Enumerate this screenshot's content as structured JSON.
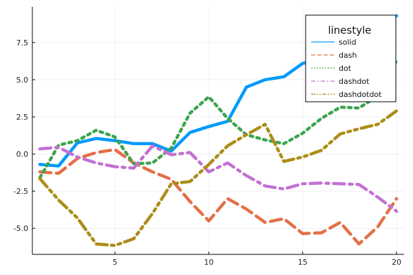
{
  "chart_data": {
    "type": "line",
    "title": "",
    "xlabel": "",
    "ylabel": "",
    "xlim": [
      0.6,
      20.4
    ],
    "ylim": [
      -6.75,
      9.9
    ],
    "grid": true,
    "legend_position": "top-right",
    "legend_title": "linestyle",
    "x": [
      1,
      2,
      3,
      4,
      5,
      6,
      7,
      8,
      9,
      10,
      11,
      12,
      13,
      14,
      15,
      16,
      17,
      18,
      19,
      20
    ],
    "xticks": [
      5,
      10,
      15,
      20
    ],
    "xtick_labels": [
      "5",
      "10",
      "15",
      "20"
    ],
    "yticks": [
      -5.0,
      -2.5,
      0.0,
      2.5,
      5.0,
      7.5
    ],
    "ytick_labels": [
      "-5.0",
      "-2.5",
      "0.0",
      "2.5",
      "5.0",
      "7.5"
    ],
    "series": [
      {
        "name": "solid",
        "color": "#009AFA",
        "dash": "solid",
        "values": [
          -0.7,
          -0.8,
          0.75,
          1.05,
          0.9,
          0.7,
          0.7,
          0.2,
          1.45,
          1.85,
          2.2,
          4.5,
          5.0,
          5.2,
          6.1,
          6.4,
          7.0,
          7.6,
          8.4,
          9.3
        ]
      },
      {
        "name": "dash",
        "color": "#E36F47",
        "dash": "dash",
        "values": [
          -1.2,
          -1.3,
          -0.3,
          0.1,
          0.3,
          -0.6,
          -1.2,
          -1.7,
          -3.2,
          -4.5,
          -3.0,
          -3.7,
          -4.6,
          -4.35,
          -5.35,
          -5.3,
          -4.6,
          -6.05,
          -4.9,
          -3.0
        ]
      },
      {
        "name": "dot",
        "color": "#3EA44E",
        "dash": "dot",
        "values": [
          -1.6,
          0.6,
          0.9,
          1.6,
          1.15,
          -0.65,
          -0.6,
          0.4,
          2.75,
          3.85,
          2.4,
          1.3,
          0.95,
          0.7,
          1.4,
          2.4,
          3.15,
          3.1,
          3.9,
          6.3
        ]
      },
      {
        "name": "dashdot",
        "color": "#C271D2",
        "dash": "dashdot",
        "values": [
          0.35,
          0.45,
          -0.2,
          -0.6,
          -0.85,
          -0.95,
          0.55,
          -0.05,
          0.1,
          -1.2,
          -0.6,
          -1.45,
          -2.15,
          -2.35,
          -2.0,
          -1.95,
          -2.0,
          -2.05,
          -2.9,
          -3.85
        ]
      },
      {
        "name": "dashdotdot",
        "color": "#AC8D18",
        "dash": "dashdotdot",
        "values": [
          -1.65,
          -3.1,
          -4.3,
          -6.05,
          -6.15,
          -5.7,
          -4.0,
          -2.0,
          -1.85,
          -0.7,
          0.55,
          1.3,
          2.0,
          -0.5,
          -0.2,
          0.25,
          1.35,
          1.7,
          2.0,
          2.9
        ]
      }
    ]
  }
}
